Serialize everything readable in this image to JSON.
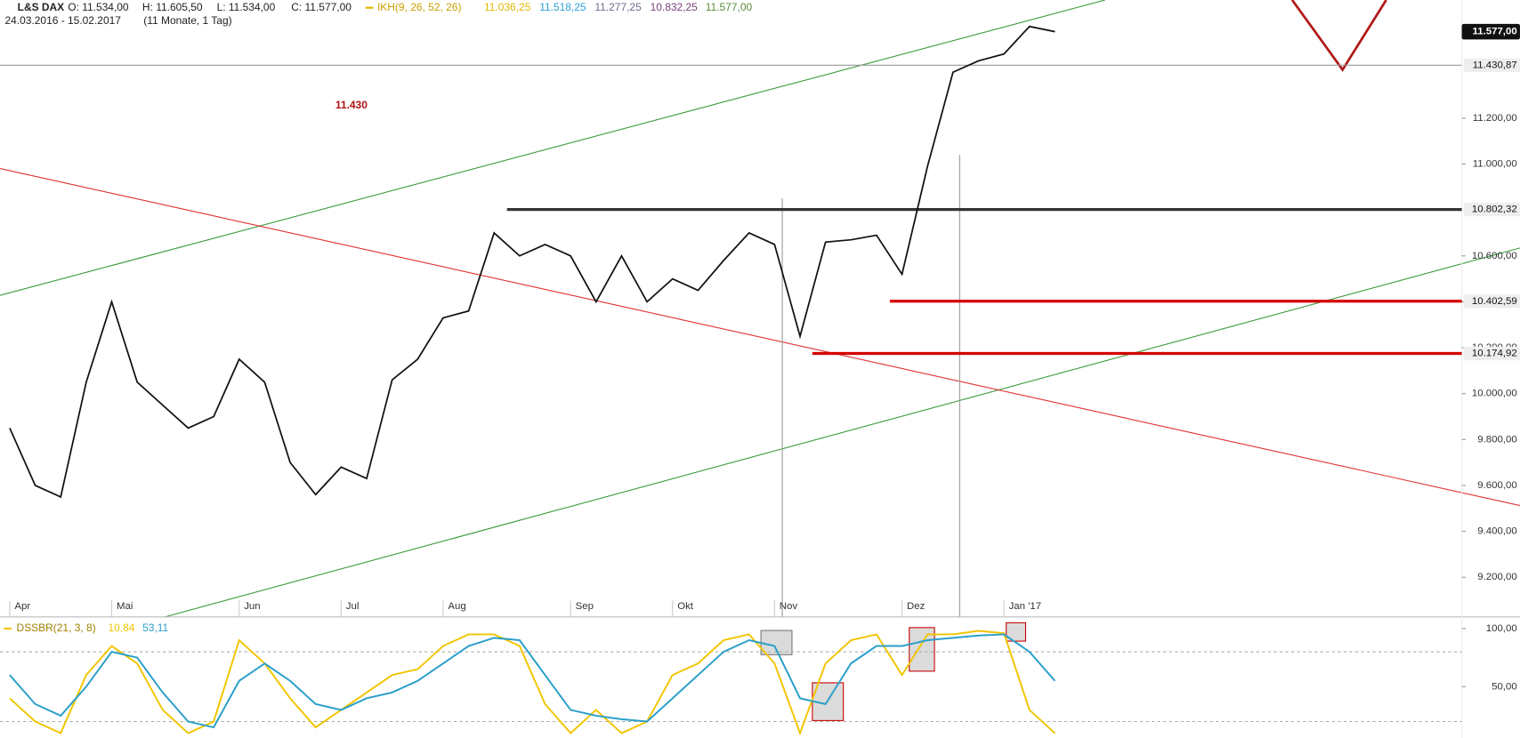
{
  "header": {
    "title": "L&S DAX",
    "ohlc": [
      "O: 11.534,00",
      "H: 11.605,50",
      "L: 11.534,00",
      "C: 11.577,00"
    ],
    "indicator": "IKH(9, 26, 52, 26)",
    "indicator_values": [
      {
        "text": "11.036,25",
        "color": "#e0b800"
      },
      {
        "text": "11.518,25",
        "color": "#2a9fd6"
      },
      {
        "text": "11.277,25",
        "color": "#6e6e8e"
      },
      {
        "text": "10.832,25",
        "color": "#7b3f7b"
      },
      {
        "text": "11.577,00",
        "color": "#5a8a3a"
      }
    ],
    "period": "24.03.2016 - 15.02.2017",
    "duration": "(11 Monate, 1 Tag)"
  },
  "chart_data": [
    {
      "type": "line",
      "annotation": "11.430",
      "categories": [
        "Apr",
        null,
        null,
        null,
        "Mai",
        null,
        null,
        null,
        null,
        "Jun",
        null,
        null,
        null,
        "Jul",
        null,
        null,
        null,
        "Aug",
        null,
        null,
        null,
        null,
        "Sep",
        null,
        null,
        null,
        "Okt",
        null,
        null,
        null,
        "Nov",
        null,
        null,
        null,
        null,
        "Dez",
        null,
        null,
        null,
        "Jan '17",
        null,
        null
      ],
      "series": [
        {
          "color": "#111111",
          "values": [
            9850,
            9600,
            9550,
            10050,
            10400,
            10050,
            9950,
            9850,
            9900,
            10150,
            10050,
            9700,
            9560,
            9680,
            9630,
            10060,
            10150,
            10330,
            10360,
            10700,
            10600,
            10650,
            10600,
            10400,
            10600,
            10400,
            10500,
            10450,
            10580,
            10700,
            10650,
            10250,
            10660,
            10670,
            10690,
            10520,
            10990,
            11400,
            11450,
            11480,
            11600,
            11577
          ]
        }
      ],
      "ylim": [
        9027,
        11715
      ],
      "yticks": [
        {
          "value": 9200,
          "label": "9.200,00"
        },
        {
          "value": 9400,
          "label": "9.400,00"
        },
        {
          "value": 9600,
          "label": "9.600,00"
        },
        {
          "value": 9800,
          "label": "9.800,00"
        },
        {
          "value": 10000,
          "label": "10.000,00"
        },
        {
          "value": 10200,
          "label": "10.200,00"
        },
        {
          "value": 10400,
          "label": "10.400,00"
        },
        {
          "value": 10600,
          "label": "10.600,00"
        },
        {
          "value": 11000,
          "label": "11.000,00"
        },
        {
          "value": 11200,
          "label": "11.200,00"
        }
      ],
      "levels": [
        {
          "value": 11577,
          "label": "11.577,00",
          "color": "#111111"
        },
        {
          "value": 11430.87,
          "label": "11.430,87",
          "color": "#9a9a9a"
        },
        {
          "value": 10802.32,
          "label": "10.802,32",
          "color": "#333333"
        },
        {
          "value": 10402.59,
          "label": "10.402,59",
          "color": "#d40000"
        },
        {
          "value": 10174.92,
          "label": "10.174,92",
          "color": "#d40000"
        }
      ]
    },
    {
      "type": "line",
      "title": "DSSBR(21, 3, 8)",
      "series": [
        {
          "color": "#f2c500",
          "values": [
            40,
            20,
            10,
            60,
            85,
            70,
            30,
            10,
            20,
            90,
            70,
            40,
            15,
            30,
            45,
            60,
            65,
            85,
            95,
            95,
            85,
            35,
            10,
            30,
            10,
            20,
            60,
            70,
            90,
            95,
            70,
            10,
            70,
            90,
            95,
            60,
            95,
            95,
            98,
            96,
            30,
            10
          ],
          "value_label": "10,84"
        },
        {
          "color": "#2a9fc9",
          "values": [
            60,
            35,
            25,
            50,
            80,
            75,
            45,
            20,
            15,
            55,
            70,
            55,
            35,
            30,
            40,
            45,
            55,
            70,
            85,
            92,
            90,
            60,
            30,
            25,
            22,
            20,
            40,
            60,
            80,
            90,
            85,
            40,
            35,
            70,
            85,
            85,
            90,
            92,
            94,
            95,
            80,
            55
          ],
          "value_label": "53,11"
        }
      ],
      "ylim": [
        5.8,
        107.5
      ],
      "yticks": [
        {
          "value": 50,
          "label": "50,00"
        },
        {
          "value": 100,
          "label": "100,00"
        }
      ]
    }
  ]
}
